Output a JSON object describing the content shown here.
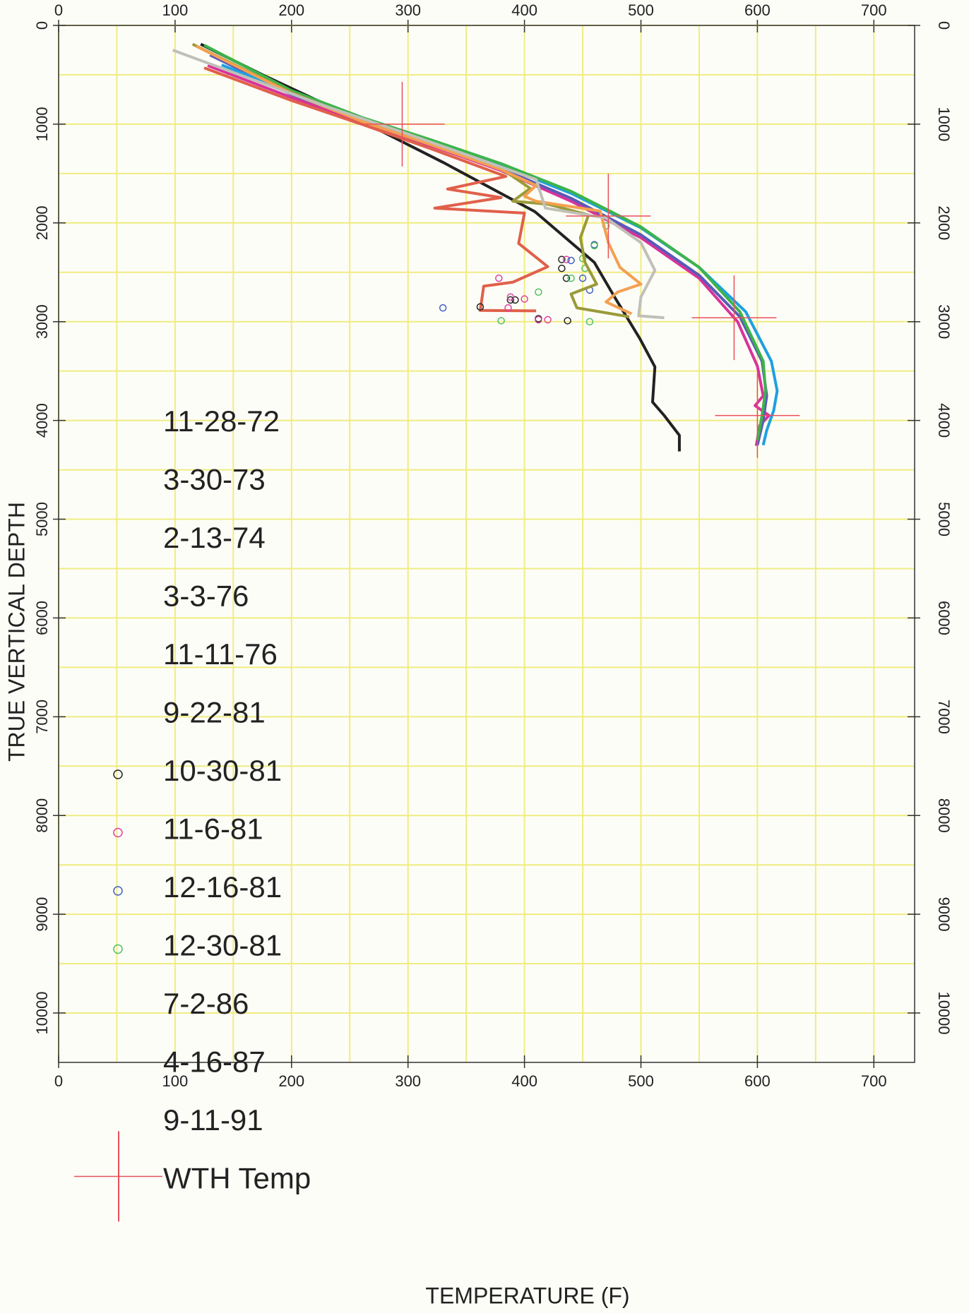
{
  "chart_data": {
    "type": "line",
    "xlabel": "TEMPERATURE (F)",
    "ylabel": "TRUE VERTICAL DEPTH",
    "xlim": [
      0,
      735
    ],
    "ylim": [
      0,
      10500
    ],
    "y_inverted": true,
    "xticks": [
      0,
      100,
      200,
      300,
      400,
      500,
      600,
      700
    ],
    "yticks": [
      0,
      1000,
      2000,
      3000,
      4000,
      5000,
      6000,
      7000,
      8000,
      9000,
      10000
    ],
    "grid": true,
    "grid_color": "#f0ec80",
    "series": [
      {
        "name": "11-28-72",
        "kind": "line",
        "color": "#222222",
        "x": [
          122,
          175,
          258,
          330,
          409,
          460,
          477,
          499,
          512,
          510,
          520,
          533,
          533
        ],
        "values": [
          190,
          500,
          957,
          1386,
          1886,
          2400,
          2743,
          3170,
          3457,
          3814,
          3950,
          4150,
          4314
        ]
      },
      {
        "name": "3-30-73",
        "kind": "line",
        "color": "#d8339a",
        "x": [
          128,
          200,
          260,
          320,
          380,
          440,
          500,
          550,
          583,
          600,
          605,
          598,
          610,
          602,
          599
        ],
        "values": [
          407,
          730,
          980,
          1220,
          1470,
          1780,
          2150,
          2560,
          3000,
          3450,
          3750,
          3850,
          3950,
          4050,
          4257
        ]
      },
      {
        "name": "2-13-74",
        "kind": "line",
        "color": "#5a5ab8",
        "x": [
          130,
          200,
          260,
          320,
          380,
          440,
          500,
          550,
          585,
          604,
          608,
          605,
          600
        ],
        "values": [
          300,
          700,
          960,
          1200,
          1450,
          1750,
          2120,
          2530,
          2950,
          3400,
          3750,
          4000,
          4250
        ]
      },
      {
        "name": "3-3-76",
        "kind": "line",
        "color": "#1ea0e0",
        "x": [
          140,
          200,
          260,
          320,
          380,
          440,
          500,
          550,
          590,
          612,
          617,
          614,
          608,
          605
        ],
        "values": [
          400,
          680,
          950,
          1180,
          1420,
          1700,
          2050,
          2450,
          2900,
          3400,
          3700,
          3900,
          4100,
          4250
        ]
      },
      {
        "name": "11-11-76",
        "kind": "line",
        "color": "#3cb44b",
        "x": [
          125,
          200,
          260,
          320,
          380,
          440,
          500,
          550,
          585,
          605,
          607,
          604,
          600
        ],
        "values": [
          200,
          660,
          930,
          1160,
          1400,
          1680,
          2040,
          2450,
          2900,
          3400,
          3700,
          3950,
          4200
        ]
      },
      {
        "name": "9-22-81",
        "kind": "line",
        "color": "#e0604a",
        "x": [
          125,
          200,
          260,
          320,
          384,
          334,
          380,
          323,
          400,
          395,
          420,
          390,
          365,
          362,
          410
        ],
        "values": [
          430,
          760,
          1000,
          1250,
          1529,
          1657,
          1743,
          1850,
          1900,
          2207,
          2443,
          2600,
          2640,
          2886,
          2890
        ]
      },
      {
        "name": "10-30-81",
        "kind": "scatter",
        "color": "#222222",
        "x": [
          432,
          432,
          436,
          362,
          388,
          392,
          412,
          437
        ],
        "values": [
          2370,
          2460,
          2560,
          2850,
          2780,
          2780,
          2970,
          2990
        ]
      },
      {
        "name": "11-6-81",
        "kind": "scatter",
        "color": "#e040a0",
        "x": [
          378,
          386,
          400,
          420,
          436,
          412,
          388
        ],
        "values": [
          2560,
          2860,
          2770,
          2980,
          2370,
          2980,
          2750
        ]
      },
      {
        "name": "12-16-81",
        "kind": "scatter",
        "color": "#4060c0",
        "x": [
          330,
          450,
          460,
          440,
          456
        ],
        "values": [
          2860,
          2560,
          2220,
          2380,
          2680
        ]
      },
      {
        "name": "12-30-81",
        "kind": "scatter",
        "color": "#50c060",
        "x": [
          470,
          460,
          452,
          450,
          456,
          380,
          412,
          440
        ],
        "values": [
          2030,
          2230,
          2460,
          2360,
          3000,
          2990,
          2700,
          2560
        ]
      },
      {
        "name": "7-2-86",
        "kind": "line",
        "color": "#9a9a3a",
        "x": [
          115,
          200,
          260,
          320,
          380,
          405,
          390,
          420,
          455,
          448,
          452,
          462,
          440,
          445,
          490
        ],
        "values": [
          190,
          680,
          960,
          1200,
          1450,
          1650,
          1780,
          1810,
          1920,
          2150,
          2400,
          2620,
          2720,
          2860,
          2950
        ]
      },
      {
        "name": "4-16-87",
        "kind": "line",
        "color": "#f4a050",
        "x": [
          118,
          200,
          260,
          320,
          380,
          410,
          400,
          410,
          465,
          472,
          482,
          500,
          480,
          470,
          492
        ],
        "values": [
          210,
          690,
          970,
          1210,
          1460,
          1620,
          1730,
          1780,
          1880,
          2200,
          2450,
          2620,
          2700,
          2800,
          2920
        ]
      },
      {
        "name": "9-11-91",
        "kind": "line",
        "color": "#c0c0b8",
        "x": [
          98,
          160,
          230,
          300,
          360,
          410,
          418,
          470,
          500,
          512,
          500,
          498,
          520
        ],
        "values": [
          250,
          520,
          820,
          1100,
          1350,
          1560,
          1850,
          1950,
          2200,
          2480,
          2750,
          2940,
          2960
        ]
      },
      {
        "name": "WTH Temp",
        "kind": "cross",
        "color": "#e8505a",
        "x": [
          295,
          472,
          580,
          600
        ],
        "values": [
          1000,
          1930,
          2960,
          3950
        ]
      }
    ]
  }
}
